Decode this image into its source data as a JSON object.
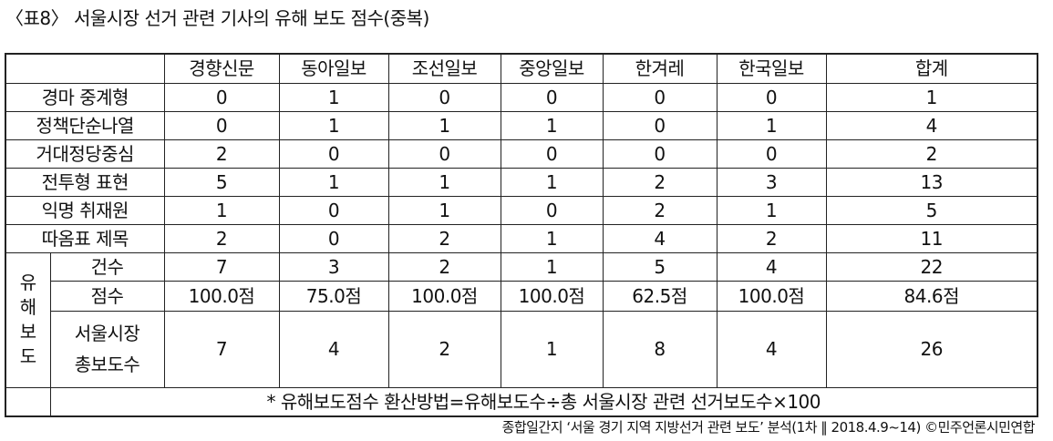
{
  "title": "〈표8〉 서울시장 선거 관련 기사의 유해 보도 점수(중복)",
  "columns": [
    "경향신문",
    "동아일보",
    "조선일보",
    "중앙일보",
    "한겨레",
    "한국일보",
    "합계"
  ],
  "rows": [
    {
      "label": "경마 중계형",
      "values": [
        "0",
        "1",
        "0",
        "0",
        "0",
        "0",
        "1"
      ]
    },
    {
      "label": "정책단순나열",
      "values": [
        "0",
        "1",
        "1",
        "1",
        "0",
        "1",
        "4"
      ]
    },
    {
      "label": "거대정당중심",
      "values": [
        "2",
        "0",
        "0",
        "0",
        "0",
        "0",
        "2"
      ]
    },
    {
      "label": "전투형 표현",
      "values": [
        "5",
        "1",
        "1",
        "1",
        "2",
        "3",
        "13"
      ]
    },
    {
      "label": "익명 취재원",
      "values": [
        "1",
        "0",
        "1",
        "0",
        "2",
        "1",
        "5"
      ]
    },
    {
      "label": "따옴표 제목",
      "values": [
        "2",
        "0",
        "2",
        "1",
        "4",
        "2",
        "11"
      ]
    }
  ],
  "group": {
    "label_chars": [
      "유",
      "해",
      "보",
      "도"
    ],
    "rows": [
      {
        "label": "건수",
        "values": [
          "7",
          "3",
          "2",
          "1",
          "5",
          "4",
          "22"
        ]
      },
      {
        "label": "점수",
        "values": [
          "100.0점",
          "75.0점",
          "100.0점",
          "100.0점",
          "62.5점",
          "100.0점",
          "84.6점"
        ]
      },
      {
        "label_lines": [
          "서울시장",
          "총보도수"
        ],
        "values": [
          "7",
          "4",
          "2",
          "1",
          "8",
          "4",
          "26"
        ]
      }
    ]
  },
  "note": "* 유해보도점수 환산방법=유해보도수÷총 서울시장 관련 선거보도수×100",
  "source": "종합일간지 ‘서울 경기 지역 지방선거 관련 보도’ 분석(1차 ‖ 2018.4.9~14) ©민주언론시민연합"
}
